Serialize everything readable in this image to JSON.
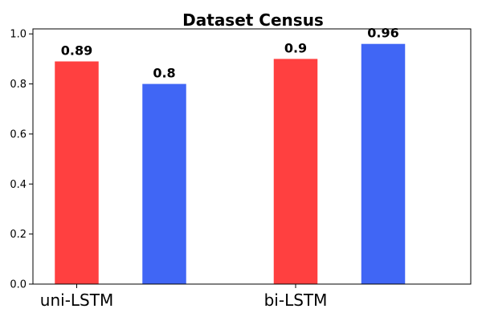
{
  "chart_data": {
    "type": "bar",
    "title": "Dataset Census",
    "categories": [
      "uni-LSTM",
      "bi-LSTM"
    ],
    "series": [
      {
        "color": "#ff4040",
        "values": [
          0.89,
          0.9
        ],
        "labels": [
          "0.89",
          "0.9"
        ]
      },
      {
        "color": "#4066f5",
        "values": [
          0.8,
          0.96
        ],
        "labels": [
          "0.8",
          "0.96"
        ]
      }
    ],
    "xlabel": "",
    "ylabel": "",
    "ylim": [
      0,
      1.02
    ],
    "yticks": [
      0.0,
      0.2,
      0.4,
      0.6,
      0.8,
      1.0
    ],
    "ytick_labels": [
      "0.0",
      "0.2",
      "0.4",
      "0.6",
      "0.8",
      "1.0"
    ],
    "grid": false,
    "legend": "none"
  }
}
